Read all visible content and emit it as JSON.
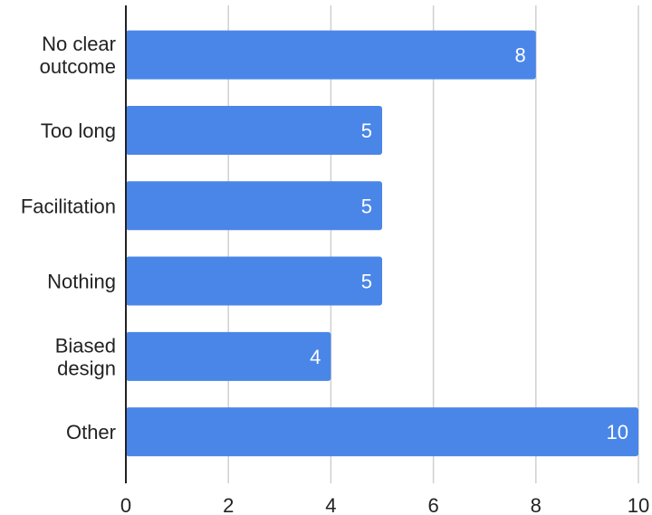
{
  "colors": {
    "bar": "#4a86e8",
    "grid": "#d0d0d0",
    "axis": "#222222",
    "text": "#222222",
    "data_label": "#ffffff"
  },
  "chart_data": {
    "type": "bar",
    "orientation": "horizontal",
    "title": "",
    "xlabel": "",
    "ylabel": "",
    "categories": [
      [
        "No clear",
        "outcome"
      ],
      [
        "Too long"
      ],
      [
        "Facilitation"
      ],
      [
        "Nothing"
      ],
      [
        "Biased",
        "design"
      ],
      [
        "Other"
      ]
    ],
    "values": [
      8,
      5,
      5,
      5,
      4,
      10
    ],
    "value_labels": [
      "8",
      "5",
      "5",
      "5",
      "4",
      "10"
    ],
    "xlim": [
      0,
      10
    ],
    "x_ticks": [
      0,
      2,
      4,
      6,
      8,
      10
    ],
    "x_tick_labels": [
      "0",
      "2",
      "4",
      "6",
      "8",
      "10"
    ],
    "grid": true,
    "legend": "none"
  }
}
